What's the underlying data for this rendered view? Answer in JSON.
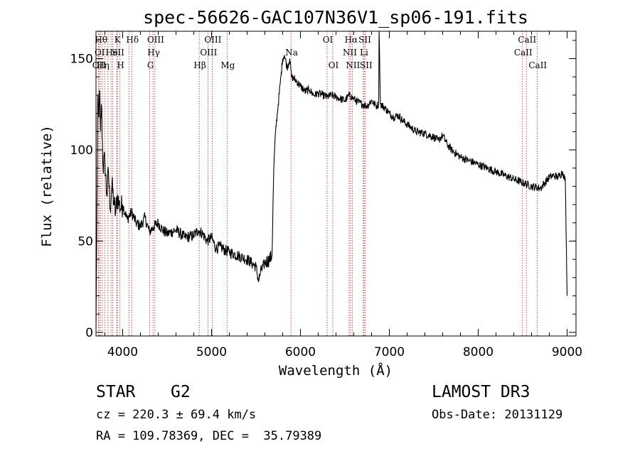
{
  "chart_data": {
    "type": "line",
    "title": "spec-56626-GAC107N36V1_sp06-191.fits",
    "xlabel": "Wavelength (Å)",
    "ylabel": "Flux (relative)",
    "xlim": [
      3700,
      9100
    ],
    "ylim": [
      -2,
      165
    ],
    "xticks": [
      4000,
      5000,
      6000,
      7000,
      8000,
      9000
    ],
    "xtick_labels": [
      "4000",
      "5000",
      "6000",
      "7000",
      "8000",
      "9000"
    ],
    "yticks": [
      0,
      50,
      100,
      150
    ],
    "ytick_labels": [
      "0",
      "50",
      "100",
      "150"
    ],
    "series": [
      {
        "name": "spectrum",
        "x": [
          3700,
          3710,
          3720,
          3730,
          3740,
          3750,
          3760,
          3780,
          3800,
          3820,
          3840,
          3860,
          3880,
          3900,
          3920,
          3940,
          3960,
          3980,
          4000,
          4050,
          4100,
          4150,
          4200,
          4250,
          4300,
          4350,
          4400,
          4450,
          4500,
          4600,
          4700,
          4800,
          4850,
          4900,
          4950,
          5000,
          5050,
          5100,
          5150,
          5200,
          5250,
          5300,
          5350,
          5400,
          5450,
          5500,
          5530,
          5550,
          5600,
          5650,
          5680,
          5700,
          5720,
          5750,
          5780,
          5800,
          5820,
          5850,
          5880,
          5900,
          5950,
          6000,
          6050,
          6100,
          6150,
          6200,
          6250,
          6300,
          6350,
          6400,
          6450,
          6500,
          6550,
          6600,
          6650,
          6700,
          6750,
          6800,
          6850,
          6880,
          6885,
          6900,
          6950,
          7000,
          7050,
          7100,
          7150,
          7200,
          7300,
          7400,
          7500,
          7550,
          7600,
          7650,
          7700,
          7800,
          7900,
          8000,
          8100,
          8200,
          8300,
          8400,
          8500,
          8600,
          8700,
          8800,
          8850,
          8900,
          8950,
          8980,
          9000
        ],
        "y": [
          2,
          65,
          130,
          118,
          132,
          110,
          125,
          90,
          95,
          75,
          88,
          68,
          80,
          72,
          65,
          75,
          70,
          68,
          70,
          62,
          66,
          60,
          58,
          63,
          55,
          58,
          60,
          56,
          54,
          56,
          52,
          53,
          56,
          54,
          50,
          52,
          46,
          47,
          45,
          44,
          43,
          42,
          41,
          40,
          38,
          36,
          28,
          33,
          38,
          40,
          42,
          90,
          110,
          125,
          140,
          150,
          152,
          145,
          150,
          140,
          138,
          135,
          132,
          133,
          130,
          131,
          130,
          129,
          130,
          129,
          128,
          127,
          130,
          128,
          126,
          125,
          124,
          127,
          124,
          125,
          165,
          125,
          123,
          120,
          118,
          119,
          116,
          114,
          110,
          109,
          107,
          105,
          108,
          103,
          100,
          96,
          94,
          92,
          90,
          88,
          86,
          84,
          82,
          80,
          79,
          85,
          86,
          85,
          88,
          83,
          20
        ]
      }
    ],
    "lines": [
      {
        "w": 3727,
        "label": "OII",
        "tier": 3
      },
      {
        "w": 3734,
        "label": "OI",
        "tier": 2
      },
      {
        "w": 3750,
        "label": "Hθ",
        "tier": 1
      },
      {
        "w": 3771,
        "label": "Hη",
        "tier": 3
      },
      {
        "w": 3798,
        "label": "",
        "tier": 0
      },
      {
        "w": 3835,
        "label": "",
        "tier": 0
      },
      {
        "w": 3869,
        "label": "He",
        "tier": 2
      },
      {
        "w": 3889,
        "label": "",
        "tier": 0
      },
      {
        "w": 3934,
        "label": "K",
        "tier": 1
      },
      {
        "w": 3940,
        "label": "SII",
        "tier": 2
      },
      {
        "w": 3969,
        "label": "H",
        "tier": 3
      },
      {
        "w": 4070,
        "label": "",
        "tier": 0
      },
      {
        "w": 4102,
        "label": "Hδ",
        "tier": 1
      },
      {
        "w": 4305,
        "label": "G",
        "tier": 3
      },
      {
        "w": 4341,
        "label": "Hγ",
        "tier": 2
      },
      {
        "w": 4363,
        "label": "OIII",
        "tier": 1
      },
      {
        "w": 4861,
        "label": "Hβ",
        "tier": 3
      },
      {
        "w": 4959,
        "label": "OIII",
        "tier": 2
      },
      {
        "w": 5007,
        "label": "OIII",
        "tier": 1
      },
      {
        "w": 5175,
        "label": "Mg",
        "tier": 3
      },
      {
        "w": 5893,
        "label": "Na",
        "tier": 2
      },
      {
        "w": 6300,
        "label": "OI",
        "tier": 1
      },
      {
        "w": 6364,
        "label": "OI",
        "tier": 3
      },
      {
        "w": 6548,
        "label": "NII",
        "tier": 2
      },
      {
        "w": 6563,
        "label": "Hα",
        "tier": 1
      },
      {
        "w": 6583,
        "label": "NII",
        "tier": 3
      },
      {
        "w": 6707,
        "label": "Li",
        "tier": 2
      },
      {
        "w": 6716,
        "label": "SII",
        "tier": 1
      },
      {
        "w": 6731,
        "label": "SII",
        "tier": 3
      },
      {
        "w": 8498,
        "label": "CaII",
        "tier": 2
      },
      {
        "w": 8542,
        "label": "CaII",
        "tier": 1
      },
      {
        "w": 8662,
        "label": "CaII",
        "tier": 3
      }
    ]
  },
  "info": {
    "class": "STAR",
    "subclass": "G2",
    "survey": "LAMOST DR3",
    "cz": "cz = 220.3 ± 69.4 km/s",
    "obs_date": "Obs-Date: 20131129",
    "coords": "RA = 109.78369, DEC =  35.79389"
  },
  "colors": {
    "spectrum": "#000000",
    "line_marker": "#b22222",
    "axis": "#000000"
  }
}
